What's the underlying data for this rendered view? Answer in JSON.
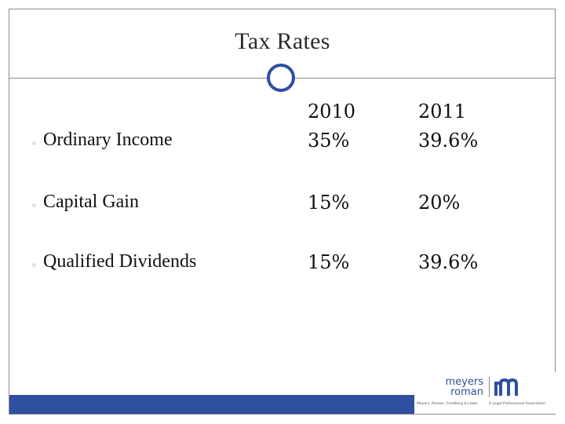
{
  "title": "Tax Rates",
  "years": [
    "2010",
    "2011"
  ],
  "rows": [
    {
      "label": "Ordinary Income",
      "v2010": "35%",
      "v2011": "39.6%"
    },
    {
      "label": "Capital Gain",
      "v2010": "15%",
      "v2011": "20%"
    },
    {
      "label": "Qualified Dividends",
      "v2010": "15%",
      "v2011": "39.6%"
    }
  ],
  "logo": {
    "line1": "meyers",
    "line2": "roman",
    "sub_left": "Meyers, Roman, Friedberg & Lewis",
    "sub_right": "A Legal Professional Association"
  },
  "colors": {
    "accent": "#2f4fa0",
    "frame": "#8a8a8a"
  }
}
